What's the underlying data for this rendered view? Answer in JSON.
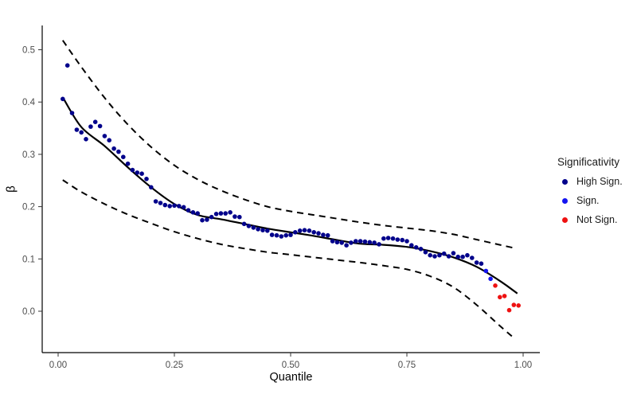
{
  "chart_data": {
    "type": "scatter",
    "title": "",
    "xlabel": "Quantile",
    "ylabel": "β",
    "xlim": [
      -0.035,
      1.035
    ],
    "ylim": [
      -0.079,
      0.546
    ],
    "grid": false,
    "background": "#ffffff",
    "axis_line_color": "#000000",
    "tick_color": "#333333",
    "tick_label_color": "#4d4d4d",
    "x_ticks": {
      "values": [
        0,
        0.25,
        0.5,
        0.75,
        1.0
      ],
      "labels": [
        "0.00",
        "0.25",
        "0.50",
        "0.75",
        "1.00"
      ]
    },
    "y_ticks": {
      "values": [
        0.0,
        0.1,
        0.2,
        0.3,
        0.4,
        0.5
      ],
      "labels": [
        "0.0",
        "0.1",
        "0.2",
        "0.3",
        "0.4",
        "0.5"
      ]
    },
    "legend": {
      "title": "Significativity",
      "position": "right",
      "entries": [
        {
          "label": "High Sign.",
          "color": "#00008B"
        },
        {
          "label": "Sign.",
          "color": "#1414F0"
        },
        {
          "label": "Not Sign.",
          "color": "#EE1111"
        }
      ]
    },
    "series": [
      {
        "name": "High Sign.",
        "type": "scatter",
        "color": "#00008B",
        "marker_radius": 2.8,
        "points": [
          [
            0.01,
            0.406
          ],
          [
            0.02,
            0.47
          ],
          [
            0.03,
            0.379
          ],
          [
            0.04,
            0.347
          ],
          [
            0.05,
            0.342
          ],
          [
            0.06,
            0.329
          ],
          [
            0.07,
            0.353
          ],
          [
            0.08,
            0.362
          ],
          [
            0.09,
            0.354
          ],
          [
            0.1,
            0.335
          ],
          [
            0.11,
            0.327
          ],
          [
            0.12,
            0.311
          ],
          [
            0.13,
            0.305
          ],
          [
            0.14,
            0.295
          ],
          [
            0.15,
            0.282
          ],
          [
            0.16,
            0.27
          ],
          [
            0.17,
            0.265
          ],
          [
            0.18,
            0.263
          ],
          [
            0.19,
            0.253
          ],
          [
            0.2,
            0.237
          ],
          [
            0.21,
            0.21
          ],
          [
            0.22,
            0.207
          ],
          [
            0.23,
            0.203
          ],
          [
            0.24,
            0.201
          ],
          [
            0.25,
            0.202
          ],
          [
            0.26,
            0.201
          ],
          [
            0.27,
            0.199
          ],
          [
            0.28,
            0.193
          ],
          [
            0.29,
            0.189
          ],
          [
            0.3,
            0.187
          ],
          [
            0.31,
            0.174
          ],
          [
            0.32,
            0.175
          ],
          [
            0.33,
            0.18
          ],
          [
            0.34,
            0.186
          ],
          [
            0.35,
            0.187
          ],
          [
            0.36,
            0.187
          ],
          [
            0.37,
            0.189
          ],
          [
            0.38,
            0.181
          ],
          [
            0.39,
            0.18
          ],
          [
            0.4,
            0.167
          ],
          [
            0.41,
            0.163
          ],
          [
            0.42,
            0.16
          ],
          [
            0.43,
            0.157
          ],
          [
            0.44,
            0.155
          ],
          [
            0.45,
            0.154
          ],
          [
            0.46,
            0.146
          ],
          [
            0.47,
            0.145
          ],
          [
            0.48,
            0.143
          ],
          [
            0.49,
            0.145
          ],
          [
            0.5,
            0.146
          ],
          [
            0.51,
            0.151
          ],
          [
            0.52,
            0.154
          ],
          [
            0.53,
            0.155
          ],
          [
            0.54,
            0.154
          ],
          [
            0.55,
            0.151
          ],
          [
            0.56,
            0.149
          ],
          [
            0.57,
            0.146
          ],
          [
            0.58,
            0.145
          ],
          [
            0.59,
            0.134
          ],
          [
            0.6,
            0.132
          ],
          [
            0.61,
            0.131
          ],
          [
            0.62,
            0.126
          ],
          [
            0.63,
            0.131
          ],
          [
            0.64,
            0.134
          ],
          [
            0.65,
            0.134
          ],
          [
            0.66,
            0.133
          ],
          [
            0.67,
            0.132
          ],
          [
            0.68,
            0.131
          ],
          [
            0.69,
            0.128
          ],
          [
            0.7,
            0.139
          ],
          [
            0.71,
            0.14
          ],
          [
            0.72,
            0.139
          ],
          [
            0.73,
            0.137
          ],
          [
            0.74,
            0.136
          ],
          [
            0.75,
            0.134
          ],
          [
            0.76,
            0.126
          ],
          [
            0.77,
            0.122
          ],
          [
            0.78,
            0.119
          ],
          [
            0.79,
            0.113
          ],
          [
            0.8,
            0.107
          ],
          [
            0.81,
            0.105
          ],
          [
            0.82,
            0.107
          ],
          [
            0.83,
            0.11
          ],
          [
            0.84,
            0.105
          ],
          [
            0.85,
            0.111
          ],
          [
            0.86,
            0.104
          ],
          [
            0.87,
            0.104
          ],
          [
            0.88,
            0.107
          ],
          [
            0.89,
            0.102
          ],
          [
            0.9,
            0.093
          ],
          [
            0.91,
            0.091
          ]
        ]
      },
      {
        "name": "Sign.",
        "type": "scatter",
        "color": "#1414F0",
        "marker_radius": 2.8,
        "points": [
          [
            0.92,
            0.077
          ],
          [
            0.93,
            0.062
          ]
        ]
      },
      {
        "name": "Not Sign.",
        "type": "scatter",
        "color": "#EE1111",
        "marker_radius": 2.8,
        "points": [
          [
            0.94,
            0.049
          ],
          [
            0.95,
            0.027
          ],
          [
            0.96,
            0.029
          ],
          [
            0.97,
            0.002
          ],
          [
            0.98,
            0.012
          ],
          [
            0.99,
            0.011
          ]
        ]
      },
      {
        "name": "trend-line",
        "type": "line",
        "style": "solid",
        "color": "#000000",
        "width": 2.2,
        "points": [
          [
            0.0125,
            0.405
          ],
          [
            0.05,
            0.352
          ],
          [
            0.1,
            0.316
          ],
          [
            0.15,
            0.275
          ],
          [
            0.2,
            0.237
          ],
          [
            0.25,
            0.205
          ],
          [
            0.3,
            0.184
          ],
          [
            0.35,
            0.176
          ],
          [
            0.4,
            0.167
          ],
          [
            0.45,
            0.158
          ],
          [
            0.5,
            0.151
          ],
          [
            0.55,
            0.144
          ],
          [
            0.6,
            0.136
          ],
          [
            0.65,
            0.129
          ],
          [
            0.7,
            0.127
          ],
          [
            0.75,
            0.123
          ],
          [
            0.8,
            0.115
          ],
          [
            0.85,
            0.103
          ],
          [
            0.9,
            0.085
          ],
          [
            0.95,
            0.058
          ],
          [
            0.9875,
            0.034
          ]
        ]
      },
      {
        "name": "upper-confidence-band",
        "type": "line",
        "style": "dashed",
        "color": "#000000",
        "width": 2,
        "points": [
          [
            0.01,
            0.518
          ],
          [
            0.05,
            0.467
          ],
          [
            0.1,
            0.408
          ],
          [
            0.15,
            0.357
          ],
          [
            0.2,
            0.314
          ],
          [
            0.25,
            0.279
          ],
          [
            0.3,
            0.252
          ],
          [
            0.35,
            0.231
          ],
          [
            0.4,
            0.214
          ],
          [
            0.45,
            0.2
          ],
          [
            0.5,
            0.191
          ],
          [
            0.55,
            0.184
          ],
          [
            0.6,
            0.177
          ],
          [
            0.65,
            0.17
          ],
          [
            0.7,
            0.164
          ],
          [
            0.75,
            0.159
          ],
          [
            0.8,
            0.154
          ],
          [
            0.85,
            0.147
          ],
          [
            0.9,
            0.137
          ],
          [
            0.95,
            0.127
          ],
          [
            0.985,
            0.12
          ]
        ]
      },
      {
        "name": "lower-confidence-band",
        "type": "line",
        "style": "dashed",
        "color": "#000000",
        "width": 2,
        "points": [
          [
            0.01,
            0.251
          ],
          [
            0.05,
            0.228
          ],
          [
            0.1,
            0.205
          ],
          [
            0.15,
            0.185
          ],
          [
            0.2,
            0.168
          ],
          [
            0.25,
            0.152
          ],
          [
            0.3,
            0.139
          ],
          [
            0.35,
            0.128
          ],
          [
            0.4,
            0.12
          ],
          [
            0.45,
            0.113
          ],
          [
            0.5,
            0.108
          ],
          [
            0.55,
            0.103
          ],
          [
            0.6,
            0.098
          ],
          [
            0.65,
            0.093
          ],
          [
            0.7,
            0.087
          ],
          [
            0.75,
            0.08
          ],
          [
            0.8,
            0.067
          ],
          [
            0.85,
            0.046
          ],
          [
            0.9,
            0.012
          ],
          [
            0.95,
            -0.028
          ],
          [
            0.98,
            -0.051
          ]
        ]
      }
    ]
  }
}
